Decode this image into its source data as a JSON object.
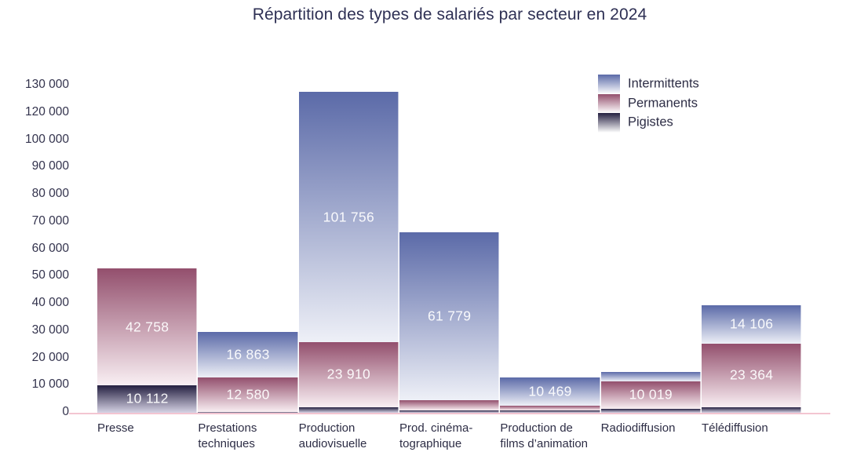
{
  "title": "Répartition des types de salariés par secteur en 2024",
  "chart_data": {
    "type": "bar",
    "stacked": true,
    "title": "Répartition des types de salariés par secteur en 2024",
    "categories": [
      "Presse",
      "Prestations\ntechniques",
      "Production\naudiovisuelle",
      "Prod. cinéma-\ntographique",
      "Production de\nfilms d’animation",
      "Radiodiffusion",
      "Télédiffusion"
    ],
    "series": [
      {
        "name": "Pigistes",
        "stack_position": "bottom",
        "color": "#241f40",
        "color_fade": "#d6d3e5",
        "values": [
          10112,
          300,
          2000,
          1000,
          800,
          1500,
          2000
        ],
        "labeled_values": [
          10112,
          null,
          null,
          null,
          null,
          null,
          null
        ]
      },
      {
        "name": "Permanents",
        "stack_position": "middle",
        "color": "#934f6d",
        "color_fade": "#f9eff3",
        "values": [
          42758,
          12580,
          23910,
          3500,
          1800,
          10019,
          23364
        ],
        "labeled_values": [
          42758,
          12580,
          23910,
          null,
          null,
          10019,
          23364
        ]
      },
      {
        "name": "Intermittents",
        "stack_position": "top",
        "color": "#5b6aa8",
        "color_fade": "#eef0f7",
        "values": [
          0,
          16863,
          101756,
          61779,
          10469,
          3500,
          14106
        ],
        "labeled_values": [
          null,
          16863,
          101756,
          61779,
          10469,
          null,
          14106
        ]
      }
    ],
    "value_label_threshold": 10000,
    "y_axis": {
      "tick_labels_bottom_to_top": [
        "0",
        "10 000",
        "20 000",
        "30 000",
        "40 000",
        "50 000",
        "60 000",
        "70 000",
        "80 000",
        "90 000",
        "100 000",
        "120 000",
        "130 000"
      ],
      "note_110000_label_missing": true,
      "gridlines": false
    },
    "legend": {
      "position": "top-right",
      "items": [
        "Intermittents",
        "Permanents",
        "Pigistes"
      ]
    },
    "baseline_color": "#f3c5d1",
    "background": "#ffffff"
  }
}
